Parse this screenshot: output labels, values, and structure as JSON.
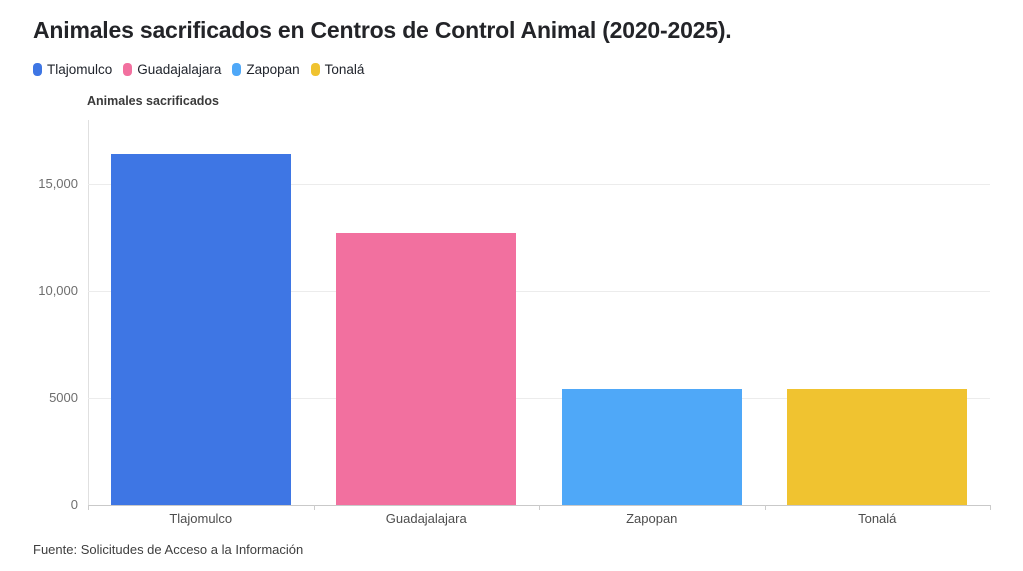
{
  "title": "Animales sacrificados en Centros de Control Animal (2020-2025).",
  "chart_data": {
    "type": "bar",
    "title": "Animales sacrificados en Centros de Control Animal (2020-2025).",
    "categories": [
      "Tlajomulco",
      "Guadajalajara",
      "Zapopan",
      "Tonalá"
    ],
    "values": [
      16400,
      12740,
      5420,
      5410
    ],
    "colors": [
      "#3E76E4",
      "#F2709F",
      "#4FA8F8",
      "#F0C330"
    ],
    "ylabel": "Animales sacrificados",
    "xlabel": "",
    "ylim": [
      0,
      18000
    ],
    "yticks": [
      0,
      5000,
      10000,
      15000
    ],
    "ytick_labels": [
      "0",
      "5000",
      "10,000",
      "15,000"
    ],
    "grid": "horizontal",
    "legend_position": "top",
    "legend": [
      {
        "label": "Tlajomulco",
        "color": "#3E76E4"
      },
      {
        "label": "Guadajalajara",
        "color": "#F2709F"
      },
      {
        "label": "Zapopan",
        "color": "#4FA8F8"
      },
      {
        "label": "Tonalá",
        "color": "#F0C330"
      }
    ],
    "source": "Fuente: Solicitudes de Acceso a la Información"
  }
}
